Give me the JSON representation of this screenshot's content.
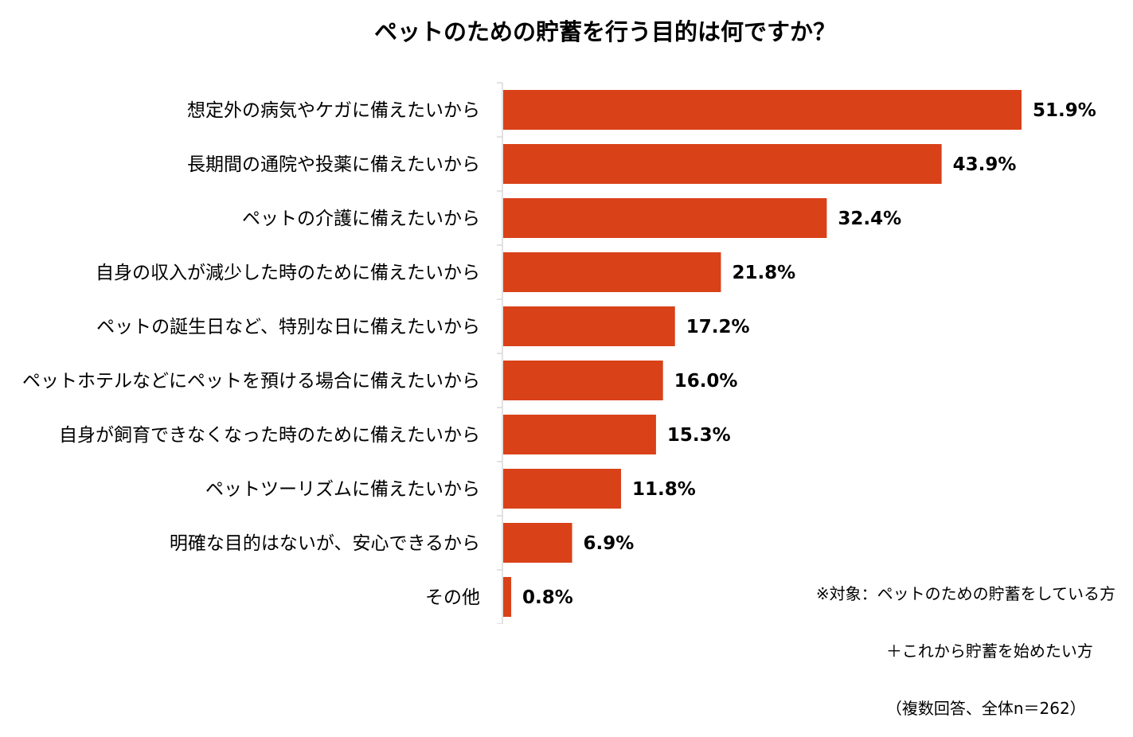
{
  "chart_data": {
    "type": "bar",
    "orientation": "horizontal",
    "title": "ペットのための貯蓄を行う目的は何ですか？",
    "categories": [
      "想定外の病気やケガに備えたいから",
      "長期間の通院や投薬に備えたいから",
      "ペットの介護に備えたいから",
      "自身の収入が減少した時のために備えたいから",
      "ペットの誕生日など、特別な日に備えたいから",
      "ペットホテルなどにペットを預ける場合に備えたいから",
      "自身が飼育できなくなった時のために備えたいから",
      "ペットツーリズムに備えたいから",
      "明確な目的はないが、安心できるから",
      "その他"
    ],
    "values": [
      51.9,
      43.9,
      32.4,
      21.8,
      17.2,
      16.0,
      15.3,
      11.8,
      6.9,
      0.8
    ],
    "value_labels": [
      "51.9%",
      "43.9%",
      "32.4%",
      "21.8%",
      "17.2%",
      "16.0%",
      "15.3%",
      "11.8%",
      "6.9%",
      "0.8%"
    ],
    "xlim": [
      0,
      60
    ],
    "bar_color": "#d94118",
    "grid": false,
    "legend": "none"
  },
  "note": {
    "line1": "※対象：ペットのための貯蓄をしている方",
    "line2": "＋これから貯蓄を始めたい方",
    "line3": "（複数回答、全体n＝262）"
  }
}
